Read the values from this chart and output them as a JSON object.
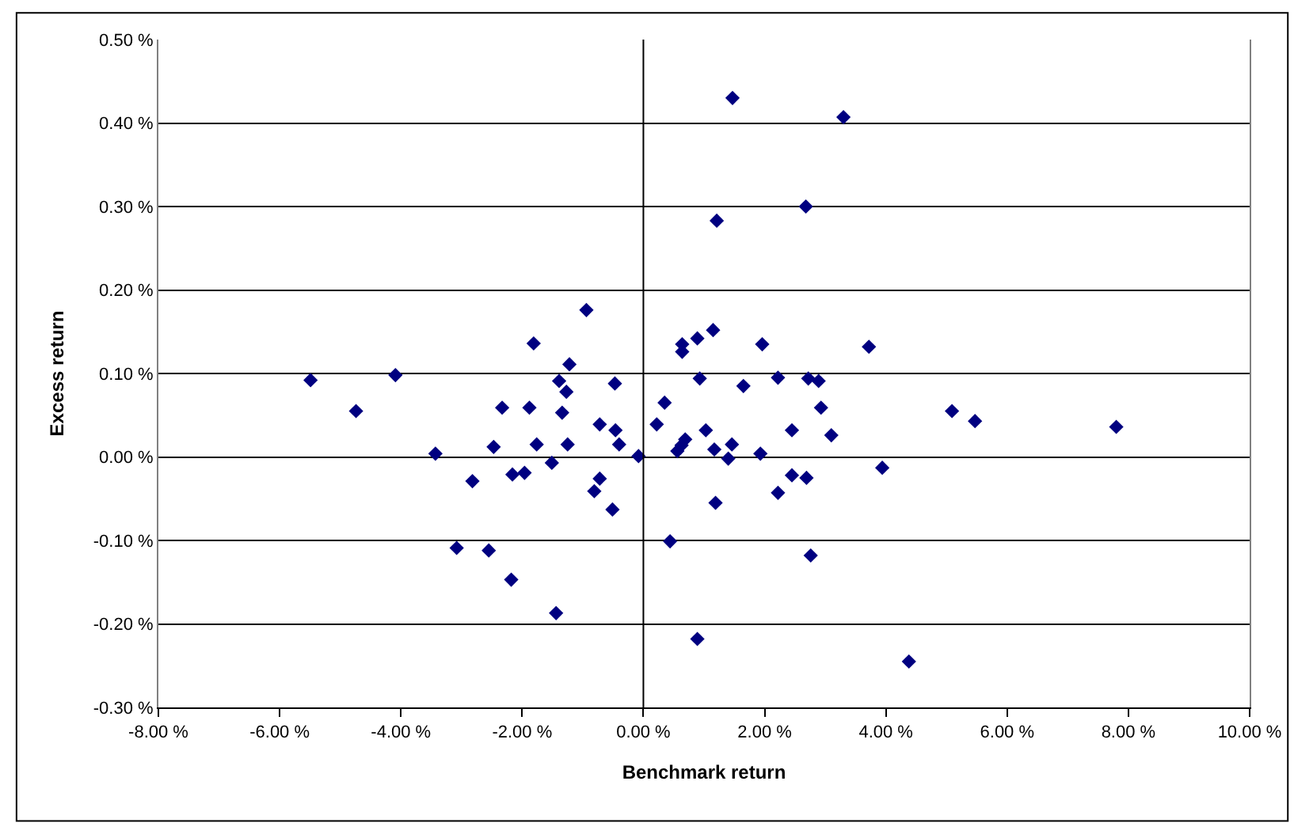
{
  "chart_data": {
    "type": "scatter",
    "xlabel": "Benchmark return",
    "ylabel": "Excess return",
    "marker": "diamond",
    "grid": "y",
    "legend": false,
    "ref_lines": [
      {
        "axis": "x",
        "value": 0,
        "color": "#000000"
      }
    ],
    "xlim": [
      -8,
      10
    ],
    "ylim": [
      -0.3,
      0.5
    ],
    "xticks": [
      {
        "value": -8,
        "label": "-8.00 %"
      },
      {
        "value": -6,
        "label": "-6.00 %"
      },
      {
        "value": -4,
        "label": "-4.00 %"
      },
      {
        "value": -2,
        "label": "-2.00 %"
      },
      {
        "value": 0,
        "label": "0.00 %"
      },
      {
        "value": 2,
        "label": "2.00 %"
      },
      {
        "value": 4,
        "label": "4.00 %"
      },
      {
        "value": 6,
        "label": "6.00 %"
      },
      {
        "value": 8,
        "label": "8.00 %"
      },
      {
        "value": 10,
        "label": "10.00 %"
      }
    ],
    "yticks": [
      {
        "value": -0.3,
        "label": "-0.30 %"
      },
      {
        "value": -0.2,
        "label": "-0.20 %"
      },
      {
        "value": -0.1,
        "label": "-0.10 %"
      },
      {
        "value": 0,
        "label": "0.00 %"
      },
      {
        "value": 0.1,
        "label": "0.10 %"
      },
      {
        "value": 0.2,
        "label": "0.20 %"
      },
      {
        "value": 0.3,
        "label": "0.30 %"
      },
      {
        "value": 0.4,
        "label": "0.40 %"
      },
      {
        "value": 0.5,
        "label": "0.50 %"
      }
    ],
    "series": [
      {
        "color": "#000080",
        "x": [
          -1.81,
          -1.22,
          -5.49,
          -4.09,
          -1.39,
          -1.27,
          -0.47,
          -4.74,
          -2.33,
          -1.88,
          -1.34,
          -0.72,
          -0.46,
          -0.4,
          -3.43,
          -2.47,
          -1.76,
          -1.25,
          -1.51,
          -0.08,
          -2.82,
          -2.16,
          -1.96,
          -0.72,
          -0.81,
          -0.51,
          -3.08,
          -2.55,
          -2.18,
          -1.44,
          -0.94,
          1.47,
          3.3,
          1.21,
          2.68,
          1.15,
          0.64,
          0.89,
          0.64,
          1.96,
          3.72,
          0.93,
          1.65,
          2.22,
          2.72,
          2.89,
          0.35,
          2.93,
          5.09,
          5.47,
          7.8,
          0.22,
          1.03,
          2.45,
          3.1,
          0.69,
          0.63,
          1.46,
          0.56,
          1.17,
          1.4,
          1.93,
          3.94,
          2.45,
          2.69,
          2.22,
          1.19,
          0.44,
          2.76,
          0.89,
          4.38
        ],
        "values": [
          0.136,
          0.111,
          0.092,
          0.098,
          0.091,
          0.078,
          0.088,
          0.055,
          0.059,
          0.059,
          0.053,
          0.039,
          0.032,
          0.015,
          0.004,
          0.012,
          0.015,
          0.015,
          -0.007,
          0.001,
          -0.029,
          -0.021,
          -0.019,
          -0.026,
          -0.041,
          -0.063,
          -0.109,
          -0.112,
          -0.147,
          -0.187,
          0.176,
          0.43,
          0.407,
          0.283,
          0.3,
          0.152,
          0.135,
          0.142,
          0.126,
          0.135,
          0.132,
          0.094,
          0.085,
          0.095,
          0.094,
          0.091,
          0.065,
          0.059,
          0.055,
          0.043,
          0.036,
          0.039,
          0.032,
          0.032,
          0.026,
          0.021,
          0.014,
          0.015,
          0.007,
          0.009,
          -0.002,
          0.004,
          -0.013,
          -0.022,
          -0.025,
          -0.043,
          -0.055,
          -0.101,
          -0.118,
          -0.218,
          -0.245
        ]
      }
    ]
  }
}
